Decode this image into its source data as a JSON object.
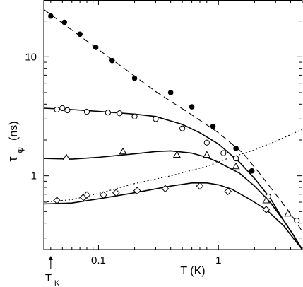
{
  "chart_data": {
    "type": "scatter",
    "xlabel": "T (K)",
    "ylabel_main": "τ",
    "ylabel_sub": "φ",
    "ylabel_unit": "(ns)",
    "xscale": "log",
    "yscale": "log",
    "xlim": [
      0.035,
      5.0
    ],
    "ylim": [
      0.24,
      30.0
    ],
    "x_ticks": [
      {
        "value": 0.1,
        "label": "0.1"
      },
      {
        "value": 1,
        "label": "1"
      }
    ],
    "y_ticks": [
      {
        "value": 1,
        "label": "1"
      },
      {
        "value": 10,
        "label": "10"
      }
    ],
    "annotation": {
      "main": "T",
      "sub": "K",
      "x": 0.04
    },
    "series": [
      {
        "marker": "filled-circle",
        "points": [
          [
            0.04,
            22.0
          ],
          [
            0.052,
            19.5
          ],
          [
            0.07,
            15.5
          ],
          [
            0.095,
            12.0
          ],
          [
            0.13,
            9.3
          ],
          [
            0.2,
            6.6
          ],
          [
            0.4,
            5.0
          ],
          [
            0.6,
            3.8
          ],
          [
            0.9,
            2.6
          ],
          [
            1.4,
            1.7
          ],
          [
            1.9,
            1.1
          ]
        ]
      },
      {
        "marker": "open-circle",
        "points": [
          [
            0.045,
            3.6
          ],
          [
            0.05,
            3.7
          ],
          [
            0.055,
            3.55
          ],
          [
            0.08,
            3.45
          ],
          [
            0.12,
            3.4
          ],
          [
            0.15,
            3.35
          ],
          [
            0.2,
            3.15
          ],
          [
            0.3,
            3.0
          ],
          [
            0.5,
            2.5
          ],
          [
            0.8,
            1.9
          ],
          [
            1.1,
            1.55
          ],
          [
            1.4,
            1.4
          ],
          [
            2.6,
            0.67
          ],
          [
            4.5,
            0.42
          ]
        ]
      },
      {
        "marker": "open-triangle",
        "points": [
          [
            0.054,
            1.42
          ],
          [
            0.16,
            1.6
          ],
          [
            0.45,
            1.5
          ],
          [
            0.8,
            1.5
          ],
          [
            1.4,
            1.2
          ],
          [
            2.5,
            0.62
          ],
          [
            3.8,
            0.48
          ]
        ]
      },
      {
        "marker": "open-diamond",
        "points": [
          [
            0.045,
            0.62
          ],
          [
            0.075,
            0.66
          ],
          [
            0.08,
            0.69
          ],
          [
            0.11,
            0.69
          ],
          [
            0.14,
            0.72
          ],
          [
            0.21,
            0.75
          ],
          [
            0.36,
            0.78
          ],
          [
            0.7,
            0.82
          ],
          [
            1.2,
            0.74
          ],
          [
            2.5,
            0.52
          ]
        ]
      }
    ],
    "fit_lines": [
      {
        "style": "dashed",
        "points": [
          [
            0.035,
            25.0
          ],
          [
            0.1,
            11.5
          ],
          [
            0.3,
            5.1
          ],
          [
            0.6,
            3.25
          ],
          [
            1.0,
            2.3
          ],
          [
            1.6,
            1.55
          ],
          [
            2.2,
            1.05
          ],
          [
            3.0,
            0.7
          ],
          [
            4.0,
            0.48
          ],
          [
            5.0,
            0.34
          ]
        ]
      },
      {
        "style": "dotted",
        "points": [
          [
            0.035,
            0.6
          ],
          [
            0.06,
            0.63
          ],
          [
            0.1,
            0.71
          ],
          [
            0.2,
            0.86
          ],
          [
            0.4,
            1.0
          ],
          [
            0.8,
            1.2
          ],
          [
            1.2,
            1.4
          ],
          [
            2.0,
            1.65
          ],
          [
            3.0,
            1.95
          ],
          [
            5.0,
            2.45
          ]
        ]
      },
      {
        "style": "solid",
        "points": [
          [
            0.035,
            3.7
          ],
          [
            0.06,
            3.6
          ],
          [
            0.1,
            3.48
          ],
          [
            0.2,
            3.3
          ],
          [
            0.3,
            3.15
          ],
          [
            0.5,
            2.7
          ],
          [
            0.7,
            2.3
          ],
          [
            1.0,
            1.85
          ],
          [
            1.5,
            1.3
          ],
          [
            2.0,
            0.95
          ],
          [
            2.7,
            0.65
          ],
          [
            3.5,
            0.42
          ],
          [
            4.2,
            0.32
          ],
          [
            5.0,
            0.24
          ]
        ]
      },
      {
        "style": "solid",
        "points": [
          [
            0.035,
            1.4
          ],
          [
            0.06,
            1.38
          ],
          [
            0.1,
            1.43
          ],
          [
            0.2,
            1.53
          ],
          [
            0.3,
            1.6
          ],
          [
            0.4,
            1.62
          ],
          [
            0.6,
            1.55
          ],
          [
            0.8,
            1.43
          ],
          [
            1.0,
            1.3
          ],
          [
            1.5,
            1.05
          ],
          [
            2.0,
            0.82
          ],
          [
            2.7,
            0.6
          ],
          [
            3.5,
            0.42
          ],
          [
            4.2,
            0.32
          ],
          [
            5.0,
            0.24
          ]
        ]
      },
      {
        "style": "solid",
        "points": [
          [
            0.035,
            0.58
          ],
          [
            0.06,
            0.59
          ],
          [
            0.1,
            0.64
          ],
          [
            0.2,
            0.72
          ],
          [
            0.4,
            0.82
          ],
          [
            0.6,
            0.87
          ],
          [
            0.8,
            0.87
          ],
          [
            1.0,
            0.84
          ],
          [
            1.3,
            0.77
          ],
          [
            1.8,
            0.64
          ],
          [
            2.5,
            0.52
          ],
          [
            3.5,
            0.38
          ],
          [
            4.2,
            0.3
          ],
          [
            5.0,
            0.24
          ]
        ]
      }
    ]
  }
}
